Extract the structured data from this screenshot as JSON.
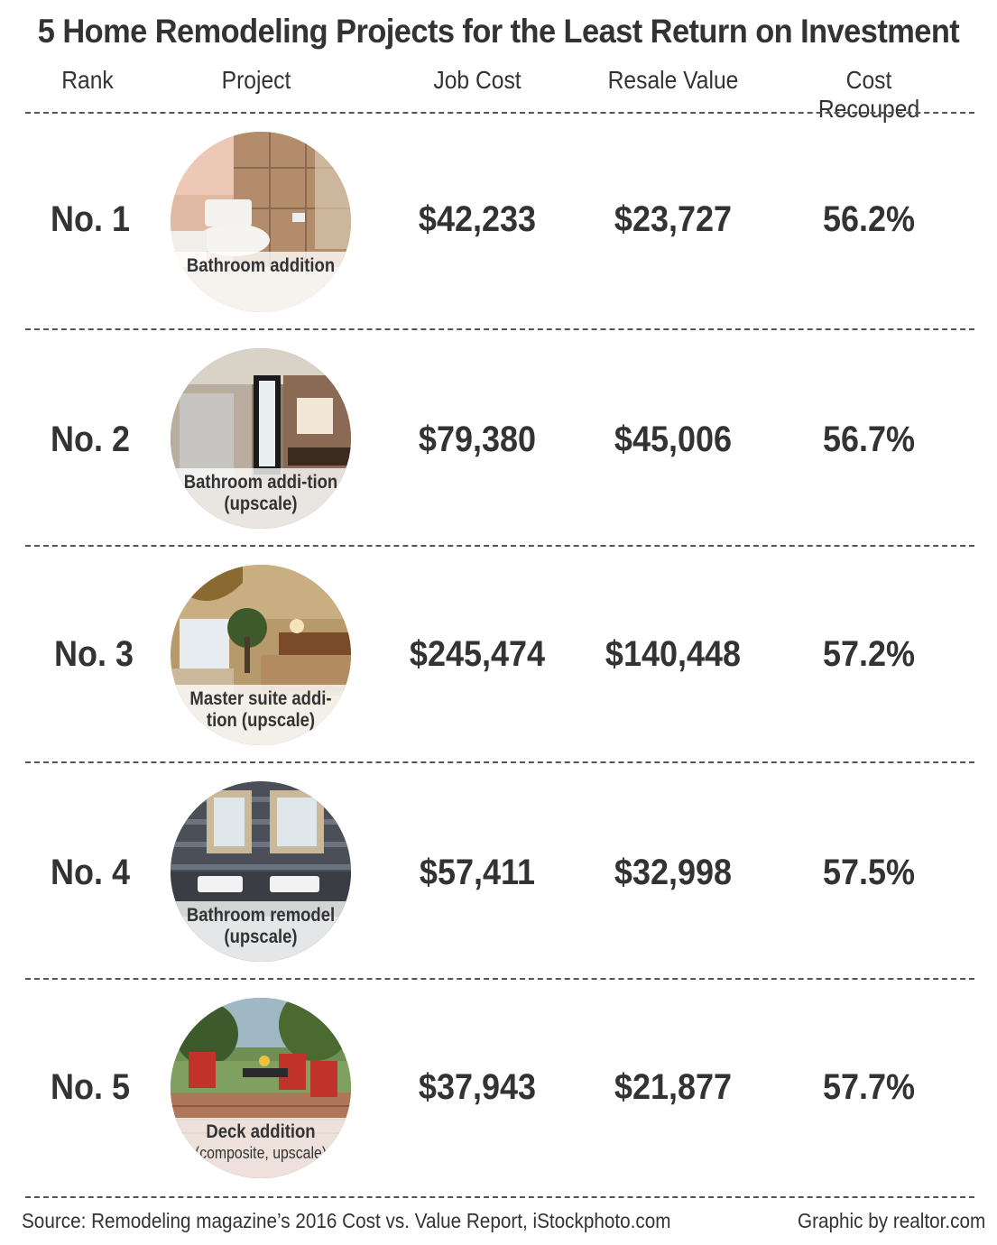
{
  "title": "5 Home Remodeling Projects for the Least Return on Investment",
  "headers": {
    "rank": "Rank",
    "project": "Project",
    "job_cost": "Job Cost",
    "resale_value": "Resale Value",
    "cost_recouped": "Cost Recouped"
  },
  "rows": [
    {
      "rank": "No. 1",
      "caption": "Bathroom addition",
      "caption_sub": "",
      "job_cost": "$42,233",
      "resale_value": "$23,727",
      "cost_recouped": "56.2%",
      "image": "bathroom-addition-photo"
    },
    {
      "rank": "No. 2",
      "caption": "Bathroom addi-tion (upscale)",
      "caption_sub": "",
      "job_cost": "$79,380",
      "resale_value": "$45,006",
      "cost_recouped": "56.7%",
      "image": "upscale-bathroom-addition-photo"
    },
    {
      "rank": "No. 3",
      "caption": "Master suite addi-tion (upscale)",
      "caption_sub": "",
      "job_cost": "$245,474",
      "resale_value": "$140,448",
      "cost_recouped": "57.2%",
      "image": "master-suite-photo"
    },
    {
      "rank": "No. 4",
      "caption": "Bathroom remodel (upscale)",
      "caption_sub": "",
      "job_cost": "$57,411",
      "resale_value": "$32,998",
      "cost_recouped": "57.5%",
      "image": "bathroom-remodel-photo"
    },
    {
      "rank": "No. 5",
      "caption": "Deck addition",
      "caption_sub": "(composite, upscale)",
      "job_cost": "$37,943",
      "resale_value": "$21,877",
      "cost_recouped": "57.7%",
      "image": "deck-addition-photo"
    }
  ],
  "footer": {
    "source": "Source: Remodeling magazine’s 2016 Cost vs. Value Report, iStockphoto.com",
    "credit": "Graphic by realtor.com"
  }
}
